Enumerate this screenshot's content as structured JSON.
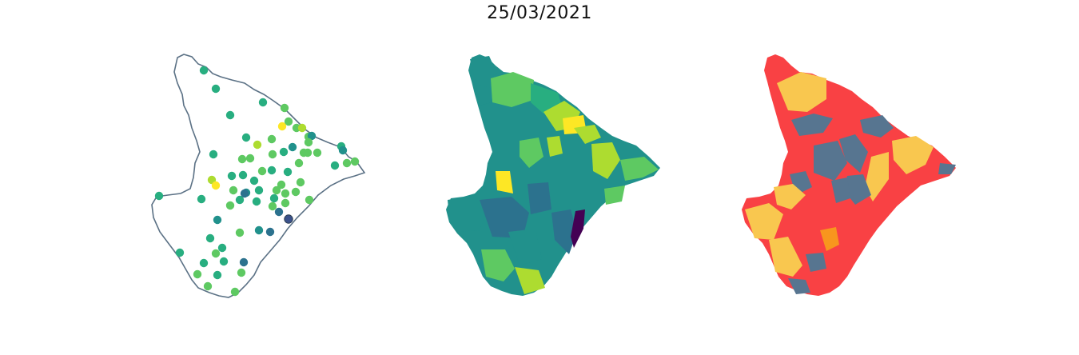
{
  "title": "25/03/2021",
  "colors": {
    "outline": "#5b7185",
    "viridis": [
      "#440154",
      "#3b528b",
      "#2c728e",
      "#21918c",
      "#28ae80",
      "#5ec962",
      "#addc30",
      "#fde725"
    ],
    "categories": {
      "red": "#f94144",
      "slate": "#577590",
      "yellow": "#f9c74f",
      "orange": "#f8961e"
    }
  },
  "maps": [
    {
      "name": "points-map",
      "style": "outline with colored circles"
    },
    {
      "name": "choropleth-map",
      "style": "municipalities filled with viridis colors"
    },
    {
      "name": "category-map",
      "style": "municipalities filled with four category colors"
    }
  ]
}
